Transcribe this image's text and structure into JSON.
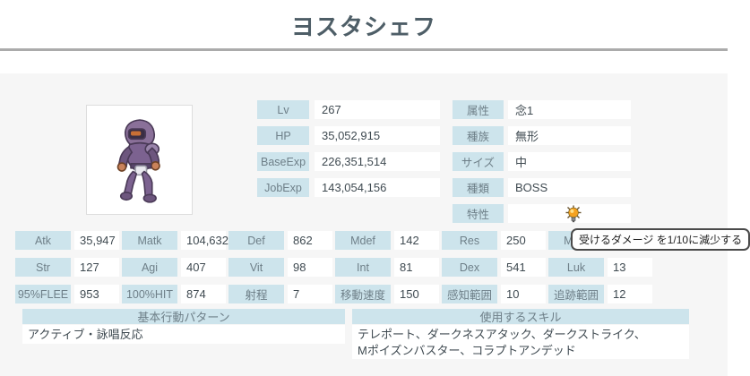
{
  "page": {
    "title": "ヨスタシェフ"
  },
  "monster_image": {
    "name": "purple-armored-monster-sprite"
  },
  "info_table": {
    "rows": [
      {
        "label": "Lv",
        "value": "267"
      },
      {
        "label": "HP",
        "value": "35,052,915"
      },
      {
        "label": "BaseExp",
        "value": "226,351,514"
      },
      {
        "label": "JobExp",
        "value": "143,054,156"
      }
    ]
  },
  "attr_table": {
    "rows": [
      {
        "label": "属性",
        "value": "念1"
      },
      {
        "label": "種族",
        "value": "無形"
      },
      {
        "label": "サイズ",
        "value": "中"
      },
      {
        "label": "種類",
        "value": "BOSS"
      },
      {
        "label": "特性",
        "value": "",
        "icon": "glowing-bulb-trait-icon"
      }
    ]
  },
  "tooltip": {
    "text": "受けるダメージ を1/10に減少する"
  },
  "stats_grid": {
    "rows": [
      [
        {
          "label": "Atk",
          "value": "35,947"
        },
        {
          "label": "Matk",
          "value": "104,632"
        },
        {
          "label": "Def",
          "value": "862"
        },
        {
          "label": "Mdef",
          "value": "142"
        },
        {
          "label": "Res",
          "value": "250"
        },
        {
          "label": "Mres",
          "value": ""
        }
      ],
      [
        {
          "label": "Str",
          "value": "127"
        },
        {
          "label": "Agi",
          "value": "407"
        },
        {
          "label": "Vit",
          "value": "98"
        },
        {
          "label": "Int",
          "value": "81"
        },
        {
          "label": "Dex",
          "value": "541"
        },
        {
          "label": "Luk",
          "value": "13"
        }
      ],
      [
        {
          "label": "95%FLEE",
          "value": "953"
        },
        {
          "label": "100%HIT",
          "value": "874"
        },
        {
          "label": "射程",
          "value": "7"
        },
        {
          "label": "移動速度",
          "value": "150"
        },
        {
          "label": "感知範囲",
          "value": "10"
        },
        {
          "label": "追跡範囲",
          "value": "12"
        }
      ]
    ]
  },
  "sections": {
    "behavior": {
      "header": "基本行動パターン",
      "content": "アクティブ・詠唱反応"
    },
    "skills": {
      "header": "使用するスキル",
      "content": "テレポート、ダークネスアタック、ダークストライク、Mポイズンバスター、コラプトアンデッド"
    }
  },
  "colors": {
    "label_bg": "#cde4ec",
    "page_bg": "#f6f6f6",
    "label_text": "#6e7f88",
    "value_text": "#3f4a51",
    "title_text": "#4e5e67",
    "rule": "#ababab"
  }
}
